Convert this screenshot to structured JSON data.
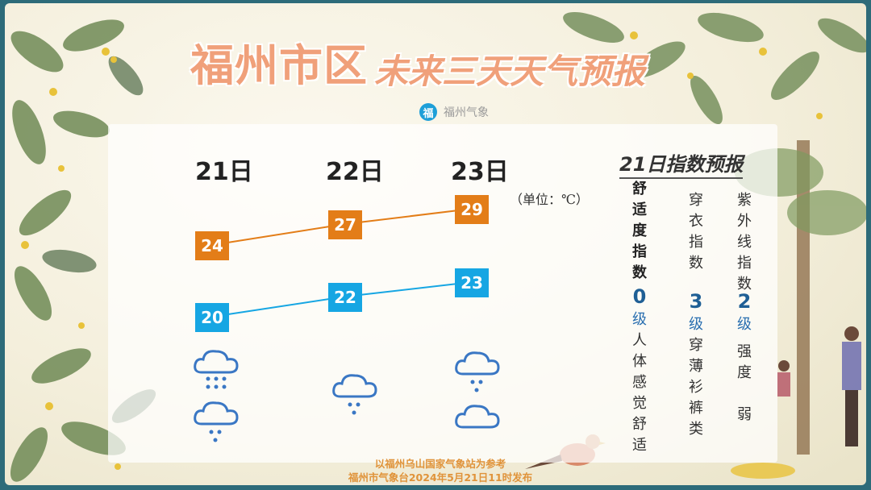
{
  "title": {
    "city": "福州市区",
    "subtitle": "未来三天天气预报"
  },
  "brand": {
    "logo_char": "福",
    "name": "福州气象"
  },
  "days": [
    {
      "label": "21日",
      "high": "24",
      "low": "20",
      "icons": [
        "cloud-heavy-rain-icon",
        "cloud-rain-icon"
      ]
    },
    {
      "label": "22日",
      "high": "27",
      "low": "22",
      "icons": [
        "cloud-rain-icon"
      ]
    },
    {
      "label": "23日",
      "high": "29",
      "low": "23",
      "icons": [
        "cloud-rain-icon",
        "cloud-icon"
      ]
    }
  ],
  "unit": "（单位：℃）",
  "colors": {
    "high": "#e37d18",
    "low": "#16a6e3",
    "icon": "#3a77c4",
    "title": "#f0a07a"
  },
  "index": {
    "title": "21日指数预报",
    "columns": [
      {
        "name": "舒适度指数",
        "level": "0",
        "level_unit": "级",
        "desc": "人体感觉舒适"
      },
      {
        "name": "穿衣指数",
        "level": "3",
        "level_unit": "级",
        "desc": "穿薄衫裤类"
      },
      {
        "name": "紫外线指数",
        "level": "2",
        "level_unit": "级",
        "desc": "强度 弱"
      }
    ]
  },
  "footer": {
    "line1": "以福州乌山国家气象站为参考",
    "line2": "福州市气象台2024年5月21日11时发布"
  }
}
